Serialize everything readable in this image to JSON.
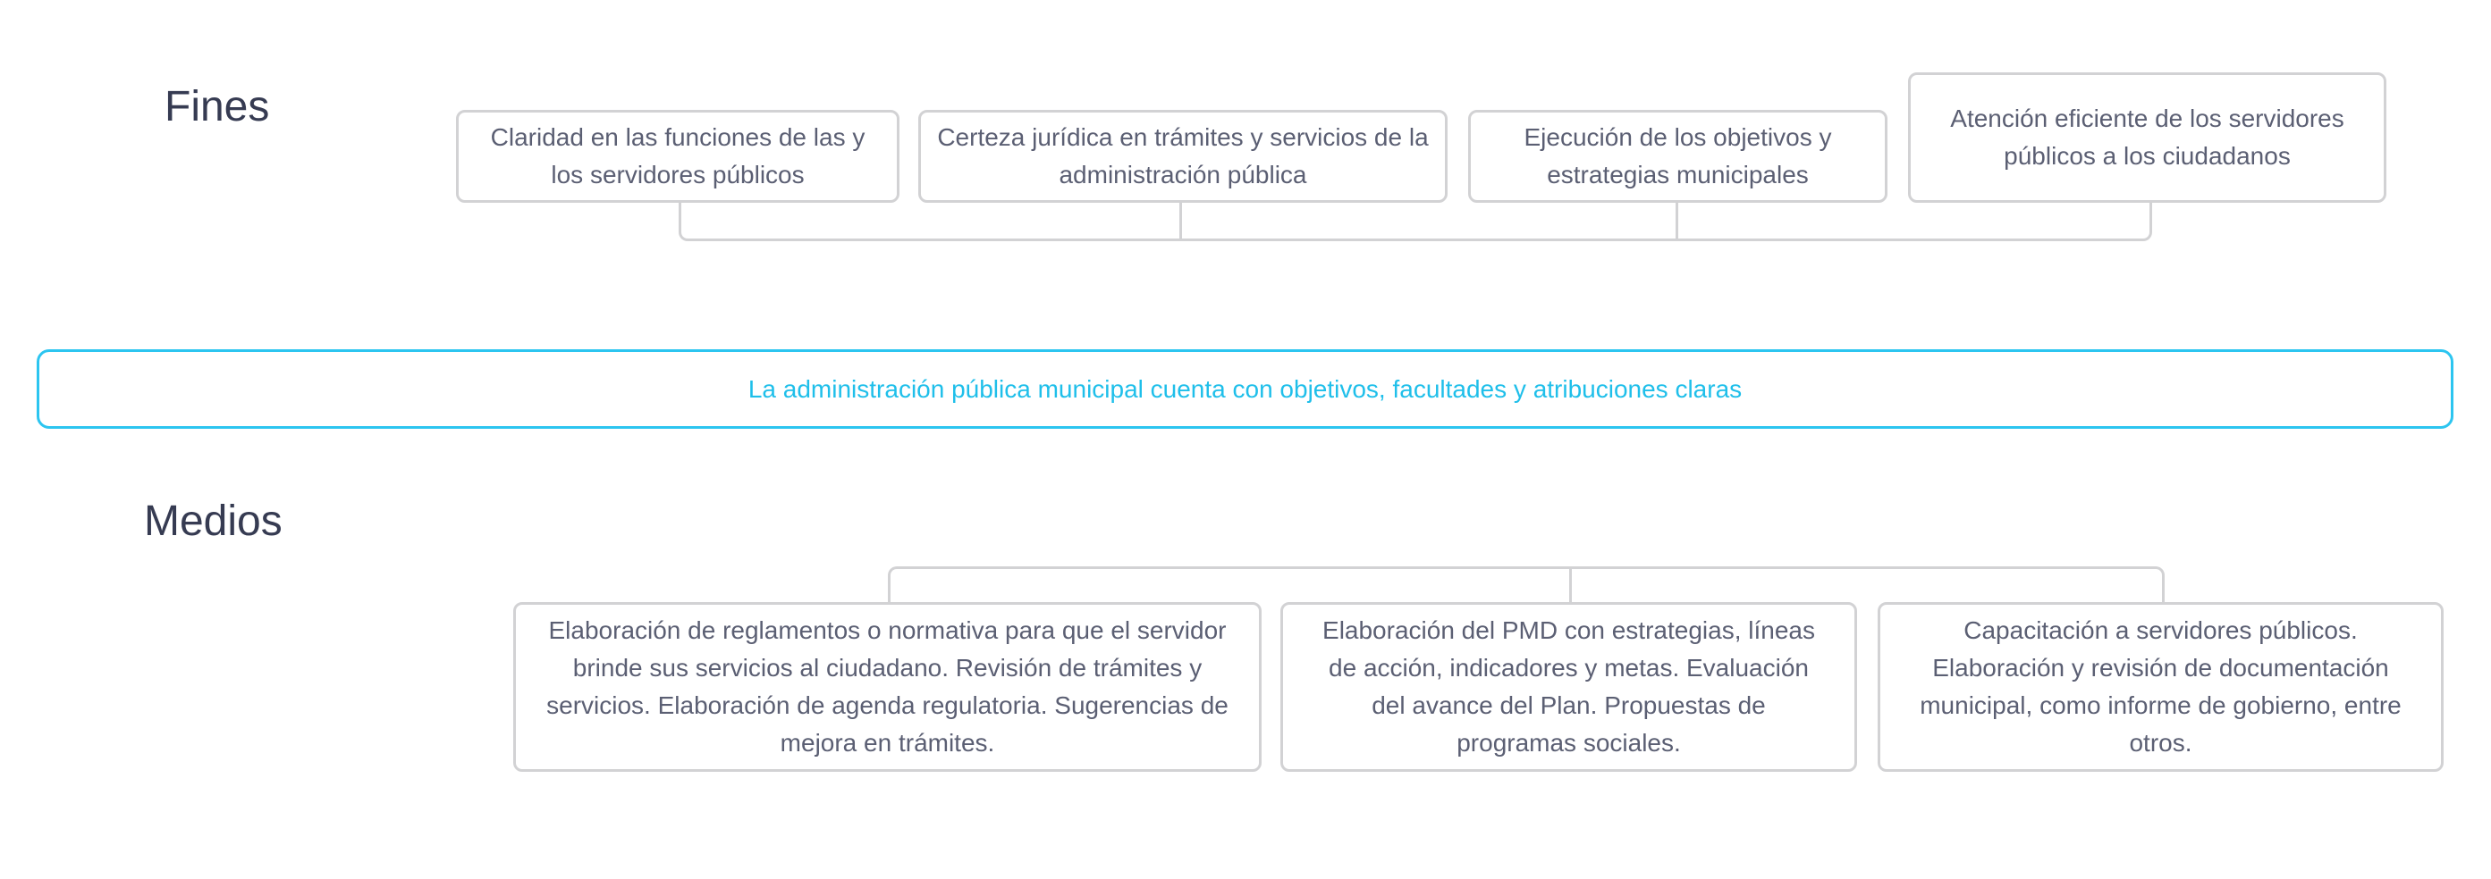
{
  "fines": {
    "title": "Fines",
    "items": [
      "Claridad en las funciones de las y los servidores públicos",
      "Certeza jurídica en trámites y servicios de la administración pública",
      "Ejecución de los objetivos y estrategias municipales",
      "Atención eficiente de los servidores públicos a los ciudadanos"
    ]
  },
  "central": {
    "text": "La administración pública municipal cuenta con objetivos, facultades y atribuciones claras",
    "color": "#1fbfea"
  },
  "medios": {
    "title": "Medios",
    "items": [
      "Elaboración de reglamentos o normativa para que el servidor brinde sus servicios al ciudadano. Revisión de trámites y servicios. Elaboración de agenda regulatoria. Sugerencias de mejora en trámites.",
      "Elaboración del PMD con estrategias, líneas de acción, indicadores y metas. Evaluación del avance del Plan. Propuestas de programas sociales.",
      "Capacitación a servidores públicos. Elaboración y revisión de documentación municipal, como informe de gobierno, entre otros."
    ]
  }
}
